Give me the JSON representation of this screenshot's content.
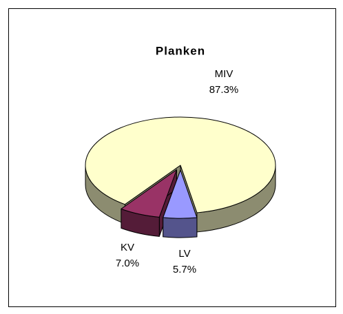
{
  "chart_data": {
    "type": "pie",
    "title": "Planken",
    "categories": [
      "MIV",
      "KV",
      "LV"
    ],
    "values": [
      87.3,
      7.0,
      5.7
    ],
    "value_labels": [
      "87.3%",
      "7.0%",
      "5.7%"
    ],
    "colors": [
      "#ffffcc",
      "#993366",
      "#9999ff"
    ]
  }
}
